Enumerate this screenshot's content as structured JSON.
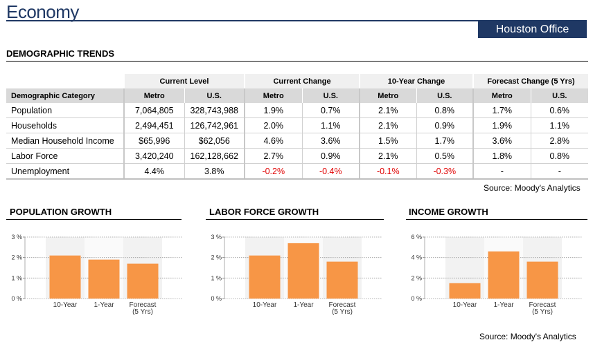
{
  "header": {
    "title": "Economy",
    "office": "Houston Office"
  },
  "demographics": {
    "section_title": "DEMOGRAPHIC TRENDS",
    "groups": [
      "Current Level",
      "Current Change",
      "10-Year Change",
      "Forecast Change (5 Yrs)"
    ],
    "category_header": "Demographic Category",
    "sub_headers": [
      "Metro",
      "U.S.",
      "Metro",
      "U.S.",
      "Metro",
      "U.S.",
      "Metro",
      "U.S."
    ],
    "rows": [
      {
        "label": "Population",
        "values": [
          "7,064,805",
          "328,743,988",
          "1.9%",
          "0.7%",
          "2.1%",
          "0.8%",
          "1.7%",
          "0.6%"
        ]
      },
      {
        "label": "Households",
        "values": [
          "2,494,451",
          "126,742,961",
          "2.0%",
          "1.1%",
          "2.1%",
          "0.9%",
          "1.9%",
          "1.1%"
        ]
      },
      {
        "label": "Median Household Income",
        "values": [
          "$65,996",
          "$62,056",
          "4.6%",
          "3.6%",
          "1.5%",
          "1.7%",
          "3.6%",
          "2.8%"
        ]
      },
      {
        "label": "Labor Force",
        "values": [
          "3,420,240",
          "162,128,662",
          "2.7%",
          "0.9%",
          "2.1%",
          "0.5%",
          "1.8%",
          "0.8%"
        ]
      },
      {
        "label": "Unemployment",
        "values": [
          "4.4%",
          "3.8%",
          "-0.2%",
          "-0.4%",
          "-0.1%",
          "-0.3%",
          "-",
          "-"
        ]
      }
    ],
    "source": "Source: Moody's Analytics"
  },
  "chart_data": [
    {
      "type": "bar",
      "title": "POPULATION GROWTH",
      "categories": [
        "10-Year",
        "1-Year",
        "Forecast (5 Yrs)"
      ],
      "category_lines": [
        [
          "10-Year"
        ],
        [
          "1-Year"
        ],
        [
          "Forecast",
          "(5 Yrs)"
        ]
      ],
      "values": [
        2.1,
        1.9,
        1.7
      ],
      "ylim": [
        0,
        3
      ],
      "yticks": [
        0,
        1,
        2,
        3
      ],
      "ytick_labels": [
        "0 %",
        "1 %",
        "2 %",
        "3 %"
      ],
      "bar_color": "#f79646",
      "grid": true
    },
    {
      "type": "bar",
      "title": "LABOR FORCE GROWTH",
      "categories": [
        "10-Year",
        "1-Year",
        "Forecast (5 Yrs)"
      ],
      "category_lines": [
        [
          "10-Year"
        ],
        [
          "1-Year"
        ],
        [
          "Forecast",
          "(5 Yrs)"
        ]
      ],
      "values": [
        2.1,
        2.7,
        1.8
      ],
      "ylim": [
        0,
        3
      ],
      "yticks": [
        0,
        1,
        2,
        3
      ],
      "ytick_labels": [
        "0 %",
        "1 %",
        "2 %",
        "3 %"
      ],
      "bar_color": "#f79646",
      "grid": true
    },
    {
      "type": "bar",
      "title": "INCOME GROWTH",
      "categories": [
        "10-Year",
        "1-Year",
        "Forecast (5 Yrs)"
      ],
      "category_lines": [
        [
          "10-Year"
        ],
        [
          "1-Year"
        ],
        [
          "Forecast",
          "(5 Yrs)"
        ]
      ],
      "values": [
        1.5,
        4.6,
        3.6
      ],
      "ylim": [
        0,
        6
      ],
      "yticks": [
        0,
        2,
        4,
        6
      ],
      "ytick_labels": [
        "0 %",
        "2 %",
        "4 %",
        "6 %"
      ],
      "bar_color": "#f79646",
      "grid": true
    }
  ],
  "charts_source": "Source: Moody's Analytics"
}
